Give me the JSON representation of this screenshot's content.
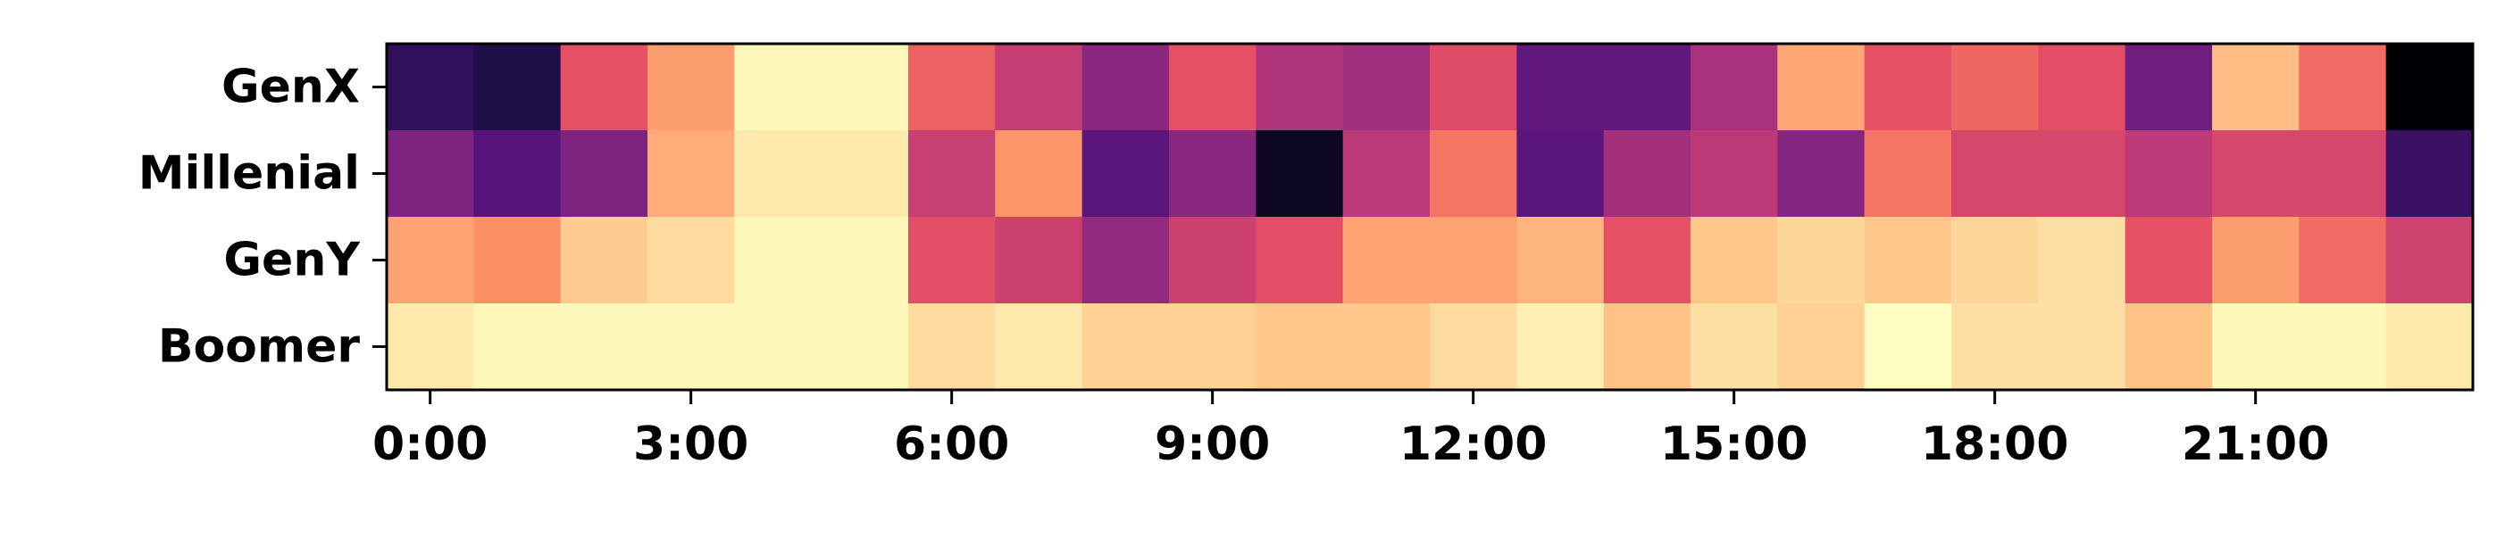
{
  "chart_data": {
    "type": "heatmap",
    "title": "",
    "xlabel": "",
    "ylabel": "",
    "colormap": "magma",
    "value_range": [
      0,
      1
    ],
    "rows": [
      "GenX",
      "Millenial",
      "GenY",
      "Boomer"
    ],
    "hours": [
      "0:00",
      "1:00",
      "2:00",
      "3:00",
      "4:00",
      "5:00",
      "6:00",
      "7:00",
      "8:00",
      "9:00",
      "10:00",
      "11:00",
      "12:00",
      "13:00",
      "14:00",
      "15:00",
      "16:00",
      "17:00",
      "18:00",
      "19:00",
      "20:00",
      "21:00",
      "22:00",
      "23:00"
    ],
    "x_ticks": [
      "0:00",
      "3:00",
      "6:00",
      "9:00",
      "12:00",
      "15:00",
      "18:00",
      "21:00"
    ],
    "x_tick_hours": [
      0,
      3,
      6,
      9,
      12,
      15,
      18,
      21
    ],
    "values": [
      [
        0.18,
        0.14,
        0.63,
        0.8,
        0.99,
        0.99,
        0.67,
        0.54,
        0.4,
        0.63,
        0.49,
        0.45,
        0.61,
        0.3,
        0.3,
        0.47,
        0.82,
        0.63,
        0.68,
        0.62,
        0.33,
        0.87,
        0.69,
        0.0
      ],
      [
        0.37,
        0.27,
        0.37,
        0.83,
        0.96,
        0.96,
        0.55,
        0.78,
        0.28,
        0.4,
        0.06,
        0.52,
        0.71,
        0.28,
        0.46,
        0.52,
        0.39,
        0.71,
        0.59,
        0.59,
        0.52,
        0.59,
        0.59,
        0.2
      ],
      [
        0.81,
        0.77,
        0.9,
        0.93,
        0.99,
        0.99,
        0.62,
        0.56,
        0.42,
        0.56,
        0.62,
        0.81,
        0.81,
        0.85,
        0.63,
        0.89,
        0.92,
        0.89,
        0.92,
        0.94,
        0.63,
        0.8,
        0.69,
        0.57
      ],
      [
        0.96,
        0.99,
        0.99,
        0.99,
        0.99,
        0.99,
        0.93,
        0.96,
        0.91,
        0.91,
        0.89,
        0.89,
        0.93,
        0.97,
        0.88,
        0.94,
        0.91,
        1.0,
        0.94,
        0.94,
        0.88,
        0.99,
        0.99,
        0.96
      ]
    ]
  }
}
